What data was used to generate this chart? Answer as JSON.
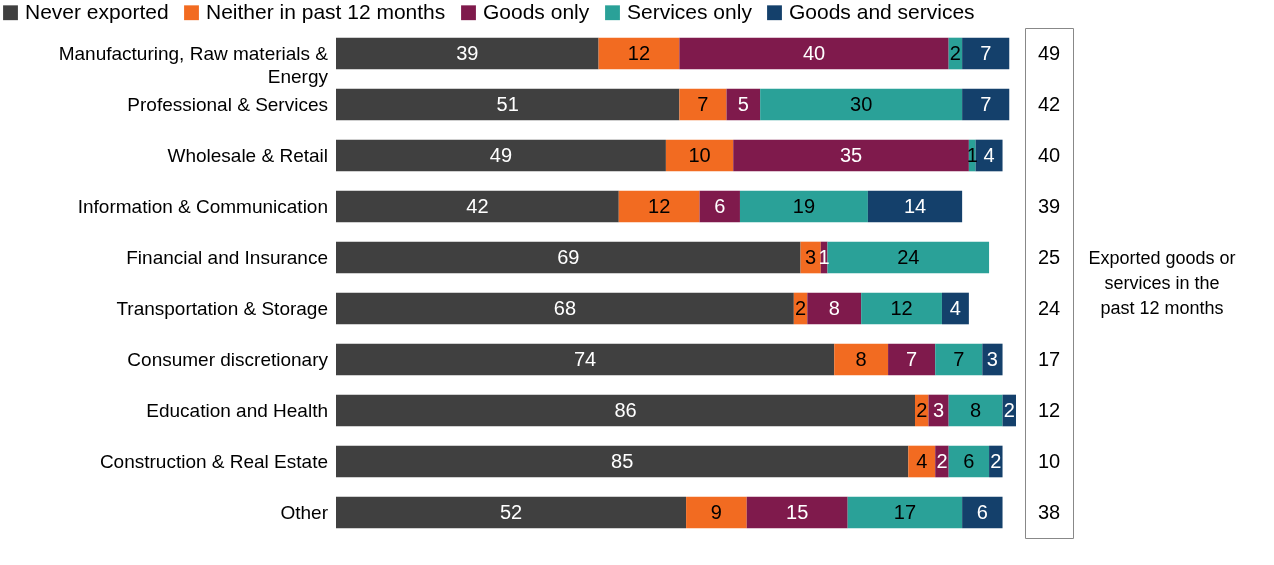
{
  "chart_data": {
    "type": "bar",
    "orientation": "horizontal",
    "stacked": true,
    "data_labels": true,
    "legend": "top",
    "categories": [
      "Manufacturing, Raw materials & Energy",
      "Professional & Services",
      "Wholesale & Retail",
      "Information & Communication",
      "Financial and Insurance",
      "Transportation & Storage",
      "Consumer discretionary",
      "Education and Health",
      "Construction & Real Estate",
      "Other"
    ],
    "series": [
      {
        "name": "Never exported",
        "color": "#404040",
        "values": [
          39,
          51,
          49,
          42,
          69,
          68,
          74,
          86,
          85,
          52
        ]
      },
      {
        "name": "Neither in past 12 months",
        "color": "#f26b21",
        "values": [
          12,
          7,
          10,
          12,
          3,
          2,
          8,
          2,
          4,
          9
        ]
      },
      {
        "name": "Goods only",
        "color": "#7f1a4c",
        "values": [
          40,
          5,
          35,
          6,
          1,
          8,
          7,
          3,
          2,
          15
        ]
      },
      {
        "name": "Services only",
        "color": "#2aa198",
        "values": [
          2,
          30,
          1,
          19,
          24,
          12,
          7,
          8,
          6,
          17
        ]
      },
      {
        "name": "Goods and services",
        "color": "#14406b",
        "values": [
          7,
          7,
          4,
          14,
          null,
          4,
          3,
          2,
          2,
          6
        ]
      }
    ],
    "annotations": [
      "Exported goods or services in the past 12 months",
      "49",
      "42",
      "40",
      "39",
      "25",
      "24",
      "17",
      "12",
      "10",
      "38"
    ]
  }
}
